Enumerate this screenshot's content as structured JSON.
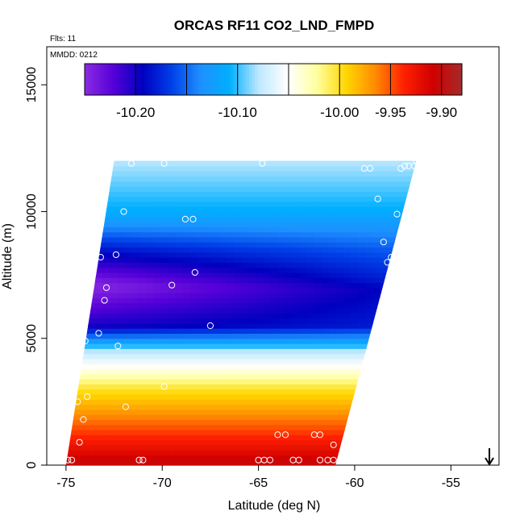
{
  "chart_data": {
    "type": "heatmap",
    "title": "ORCAS RF11 CO2_LND_FMPD",
    "subtitle_flights": "Flts: 11",
    "subtitle_date": "MMDD: 0212",
    "xlabel": "Latitude (deg N)",
    "ylabel": "Altitude (m)",
    "xlim": [
      -76,
      -52.5
    ],
    "ylim": [
      0,
      16500
    ],
    "x_ticks": [
      -75,
      -70,
      -65,
      -60,
      -55
    ],
    "x_tick_labels": [
      "-75",
      "-70",
      "-65",
      "-60",
      "-55"
    ],
    "y_ticks": [
      0,
      5000,
      10000,
      15000
    ],
    "y_tick_labels": [
      "0",
      "5000",
      "10000",
      "15000"
    ],
    "colorbar": {
      "range": [
        -10.25,
        -9.88
      ],
      "ticks": [
        -10.2,
        -10.1,
        -10.0,
        -9.95,
        -9.9
      ],
      "tick_labels": [
        "-10.20",
        "-10.10",
        "-10.00",
        "-9.95",
        "-9.90"
      ],
      "separators": [
        -10.2,
        -10.15,
        -10.1,
        -10.05,
        -10.0,
        -9.95,
        -9.9
      ],
      "colors": [
        "#8a2be2",
        "#5500d8",
        "#0000c0",
        "#0040e8",
        "#1e90ff",
        "#00b0ff",
        "#bfe8ff",
        "#ffffff",
        "#ffffa0",
        "#ffd700",
        "#ff8c00",
        "#ff2000",
        "#d00000",
        "#a52a2a"
      ]
    },
    "data_region": {
      "lat_bottom": [
        -75,
        -61
      ],
      "lat_top": [
        -72.5,
        -56.8
      ],
      "alt_range": [
        0,
        12000
      ]
    },
    "field_summary": [
      {
        "altitude": 12000,
        "value": -10.08
      },
      {
        "altitude": 10000,
        "value": -10.11
      },
      {
        "altitude": 8500,
        "value": -10.17
      },
      {
        "altitude": 7000,
        "value": -10.22
      },
      {
        "altitude": 5500,
        "value": -10.19
      },
      {
        "altitude": 4500,
        "value": -10.08
      },
      {
        "altitude": 3000,
        "value": -10.0
      },
      {
        "altitude": 1500,
        "value": -9.95
      },
      {
        "altitude": 0,
        "value": -9.9
      }
    ],
    "sample_points": [
      [
        -74.9,
        200
      ],
      [
        -74.7,
        200
      ],
      [
        -74.3,
        900
      ],
      [
        -74.1,
        1800
      ],
      [
        -74.4,
        2500
      ],
      [
        -73.9,
        2700
      ],
      [
        -73.7,
        3800
      ],
      [
        -74.0,
        4900
      ],
      [
        -73.3,
        5200
      ],
      [
        -73.0,
        6500
      ],
      [
        -72.9,
        7000
      ],
      [
        -73.7,
        7300
      ],
      [
        -73.2,
        8200
      ],
      [
        -72.4,
        8300
      ],
      [
        -72.0,
        10000
      ],
      [
        -71.6,
        11900
      ],
      [
        -69.9,
        11900
      ],
      [
        -68.8,
        9700
      ],
      [
        -68.4,
        9700
      ],
      [
        -69.5,
        7100
      ],
      [
        -68.3,
        7600
      ],
      [
        -67.5,
        5500
      ],
      [
        -72.3,
        4700
      ],
      [
        -71.9,
        2300
      ],
      [
        -69.9,
        3100
      ],
      [
        -71.2,
        200
      ],
      [
        -71.0,
        200
      ],
      [
        -65.0,
        200
      ],
      [
        -64.7,
        200
      ],
      [
        -64.4,
        200
      ],
      [
        -64.0,
        1200
      ],
      [
        -63.6,
        1200
      ],
      [
        -63.2,
        200
      ],
      [
        -62.9,
        200
      ],
      [
        -62.1,
        1200
      ],
      [
        -61.8,
        1200
      ],
      [
        -61.8,
        200
      ],
      [
        -61.4,
        200
      ],
      [
        -61.1,
        200
      ],
      [
        -61.1,
        800
      ],
      [
        -64.8,
        11900
      ],
      [
        -59.5,
        11700
      ],
      [
        -59.2,
        11700
      ],
      [
        -58.8,
        10500
      ],
      [
        -58.5,
        8800
      ],
      [
        -58.3,
        8000
      ],
      [
        -58.1,
        8200
      ],
      [
        -57.8,
        9900
      ],
      [
        -57.6,
        11700
      ],
      [
        -57.4,
        11800
      ],
      [
        -57.2,
        11800
      ],
      [
        -56.9,
        11800
      ],
      [
        -56.8,
        12000
      ]
    ],
    "arrow_marker_lat": -53
  }
}
